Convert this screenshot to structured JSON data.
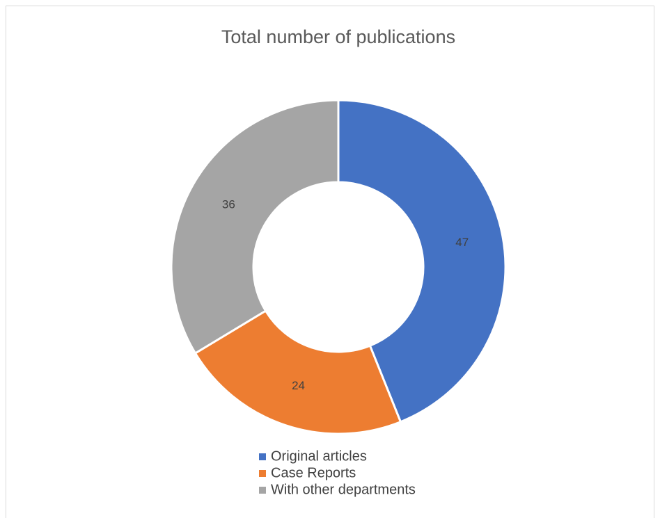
{
  "chart_data": {
    "type": "donut",
    "title": "Total number of publications",
    "categories": [
      "Original articles",
      "Case Reports",
      "With other departments"
    ],
    "values": [
      47,
      24,
      36
    ],
    "colors": [
      "#4472c4",
      "#ed7d31",
      "#a5a5a5"
    ],
    "legend": "bottom"
  }
}
